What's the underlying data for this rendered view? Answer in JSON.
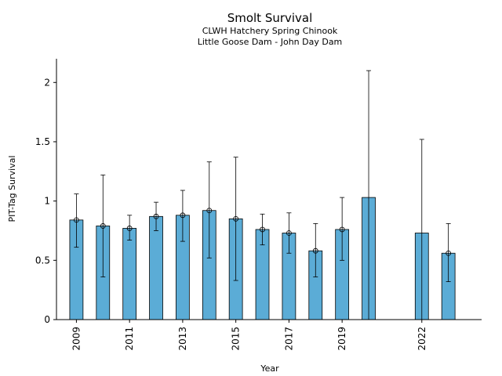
{
  "chart_data": {
    "type": "bar",
    "title": "Smolt Survival",
    "subtitle_lines": [
      "CLWH Hatchery Spring Chinook",
      "Little Goose Dam - John Day Dam"
    ],
    "xlabel": "Year",
    "ylabel": "PIT-Tag Survival",
    "xlim": [
      2008.25,
      2024.25
    ],
    "ylim": [
      0,
      2.2
    ],
    "x_ticks": [
      2009,
      2011,
      2013,
      2015,
      2017,
      2019,
      2022
    ],
    "x_tick_labels": [
      "2009",
      "2011",
      "2013",
      "2015",
      "2017",
      "2019",
      "2022"
    ],
    "y_ticks": [
      0,
      0.5,
      1,
      1.5,
      2
    ],
    "y_tick_labels": [
      "0",
      "0.5",
      "1",
      "1.5",
      "2"
    ],
    "grid": false,
    "bar_color": "#5bacd6",
    "bars": [
      {
        "x": 2009,
        "value": 0.84,
        "lower": 0.61,
        "upper": 1.06,
        "marker": true
      },
      {
        "x": 2010,
        "value": 0.79,
        "lower": 0.36,
        "upper": 1.22,
        "marker": true
      },
      {
        "x": 2011,
        "value": 0.77,
        "lower": 0.67,
        "upper": 0.88,
        "marker": true
      },
      {
        "x": 2012,
        "value": 0.87,
        "lower": 0.75,
        "upper": 0.99,
        "marker": true
      },
      {
        "x": 2013,
        "value": 0.88,
        "lower": 0.66,
        "upper": 1.09,
        "marker": true
      },
      {
        "x": 2014,
        "value": 0.92,
        "lower": 0.52,
        "upper": 1.33,
        "marker": true
      },
      {
        "x": 2015,
        "value": 0.85,
        "lower": 0.33,
        "upper": 1.37,
        "marker": true
      },
      {
        "x": 2016,
        "value": 0.76,
        "lower": 0.63,
        "upper": 0.89,
        "marker": true
      },
      {
        "x": 2017,
        "value": 0.73,
        "lower": 0.56,
        "upper": 0.9,
        "marker": true
      },
      {
        "x": 2018,
        "value": 0.58,
        "lower": 0.36,
        "upper": 0.81,
        "marker": true
      },
      {
        "x": 2019,
        "value": 0.76,
        "lower": 0.5,
        "upper": 1.03,
        "marker": true
      },
      {
        "x": 2020,
        "value": 1.03,
        "lower": 0.0,
        "upper": 2.1,
        "marker": false
      },
      {
        "x": 2022,
        "value": 0.73,
        "lower": 0.0,
        "upper": 1.52,
        "marker": false
      },
      {
        "x": 2023,
        "value": 0.56,
        "lower": 0.32,
        "upper": 0.81,
        "marker": true
      }
    ]
  }
}
